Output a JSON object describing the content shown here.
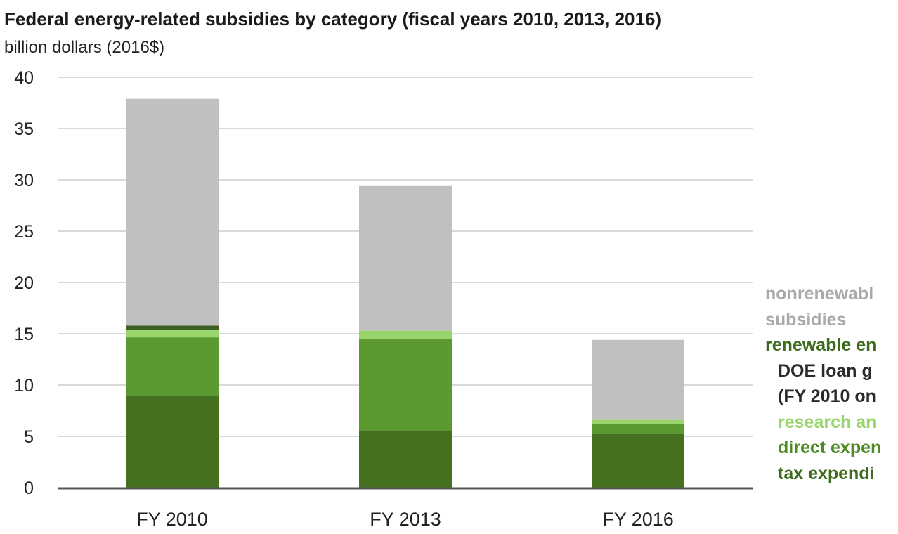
{
  "chart_data": {
    "type": "bar",
    "stacked": true,
    "title": "Federal energy-related subsidies by category (fiscal years 2010, 2013, 2016)",
    "subtitle": "billion dollars (2016$)",
    "ylim": [
      0,
      40
    ],
    "yticks": [
      "0",
      "5",
      "10",
      "15",
      "20",
      "25",
      "30",
      "35",
      "40"
    ],
    "grid": true,
    "legend_placement": "right",
    "categories": [
      "FY 2010",
      "FY 2013",
      "FY 2016"
    ],
    "series": [
      {
        "name": "tax expendi",
        "color": "#44701f",
        "values": [
          9.0,
          5.6,
          5.3
        ]
      },
      {
        "name": "direct expen",
        "color": "#5b9a2f",
        "values": [
          5.65,
          8.85,
          0.9
        ]
      },
      {
        "name": "research an",
        "color": "#9ad46c",
        "values": [
          0.75,
          0.85,
          0.4
        ]
      },
      {
        "name": "DOE loan g",
        "color": "#3f5f27",
        "values": [
          0.4,
          0,
          0
        ]
      },
      {
        "name": "nonrenewabl",
        "color": "#c0c0c0",
        "values": [
          22.1,
          14.1,
          7.8
        ]
      }
    ]
  },
  "legend": {
    "nonrenewable_line1": "nonrenewabl",
    "nonrenewable_line2": "subsidies",
    "renewable_header": "renewable en",
    "doe_line1": "DOE loan g",
    "doe_line2": "(FY 2010 on",
    "research": "research an",
    "direct": "direct expen",
    "tax": "tax expendi",
    "colors": {
      "nonrenewable": "#a9a9a9",
      "renewable": "#3f6b1f",
      "doe": "#2a2a2a",
      "research": "#9ad46c",
      "direct": "#4f8a25",
      "tax": "#3f6b1f"
    }
  }
}
